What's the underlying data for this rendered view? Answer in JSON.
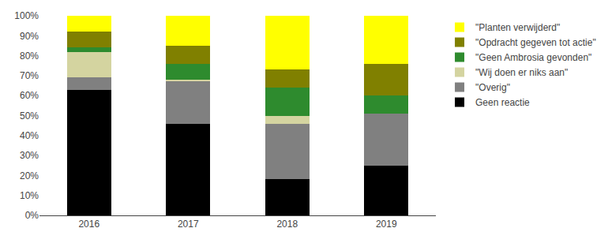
{
  "chart_data": {
    "type": "bar",
    "stacked": true,
    "categories": [
      "2016",
      "2017",
      "2018",
      "2019"
    ],
    "series": [
      {
        "name": "Geen reactie",
        "color": "#000000",
        "values": [
          63,
          46,
          18,
          25
        ]
      },
      {
        "name": "\"Overig\"",
        "color": "#808080",
        "values": [
          6,
          21,
          28,
          26
        ]
      },
      {
        "name": "\"Wij doen er niks aan\"",
        "color": "#d4d4a0",
        "values": [
          13,
          1,
          4,
          0
        ]
      },
      {
        "name": "\"Geen Ambrosia gevonden\"",
        "color": "#2e8b2e",
        "values": [
          2,
          8,
          14,
          9
        ]
      },
      {
        "name": "\"Opdracht gegeven tot actie\"",
        "color": "#808000",
        "values": [
          8,
          9,
          9,
          16
        ]
      },
      {
        "name": "\"Planten verwijderd\"",
        "color": "#ffff00",
        "values": [
          8,
          15,
          27,
          24
        ]
      }
    ],
    "ylim": [
      0,
      100
    ],
    "yticks": [
      {
        "value": 0,
        "label": "0%"
      },
      {
        "value": 10,
        "label": "10%"
      },
      {
        "value": 20,
        "label": "20%"
      },
      {
        "value": 30,
        "label": "30%"
      },
      {
        "value": 40,
        "label": "40%"
      },
      {
        "value": 50,
        "label": "50%"
      },
      {
        "value": 60,
        "label": "60%"
      },
      {
        "value": 70,
        "label": "70%"
      },
      {
        "value": 80,
        "label": "80%"
      },
      {
        "value": 90,
        "label": "90%"
      },
      {
        "value": 100,
        "label": "100%"
      }
    ],
    "grid": false,
    "legend": "right"
  }
}
